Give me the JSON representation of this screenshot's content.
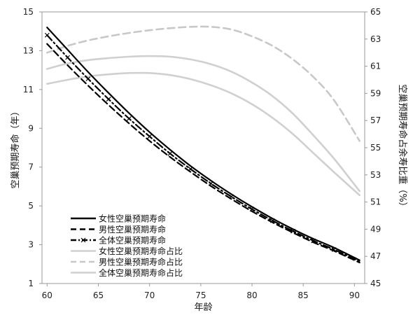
{
  "chart_data": {
    "type": "line",
    "xlabel": "年龄",
    "ylabel_left": "空巢预期寿命（年）",
    "ylabel_right": "空巢预期寿命占余寿比重（%）",
    "x_ticks": [
      60,
      65,
      70,
      75,
      80,
      85,
      90
    ],
    "x_range": [
      59.5,
      91
    ],
    "y_left_ticks": [
      1,
      3,
      5,
      7,
      9,
      11,
      13,
      15
    ],
    "y_left_range": [
      1,
      15
    ],
    "y_right_ticks": [
      45,
      47,
      49,
      51,
      53,
      55,
      57,
      59,
      61,
      63,
      65
    ],
    "y_right_range": [
      45,
      65
    ],
    "grid": false,
    "legend_placement": "bottom-left",
    "x": [
      60,
      62,
      64,
      66,
      68,
      70,
      72,
      74,
      76,
      78,
      80,
      82,
      84,
      86,
      88,
      90.5
    ],
    "series": [
      {
        "name": "女性空巢预期寿命",
        "axis": "left",
        "color": "#000000",
        "style": "solid",
        "values": [
          14.2,
          13.05,
          11.9,
          10.82,
          9.78,
          8.8,
          7.9,
          7.06,
          6.3,
          5.6,
          4.95,
          4.35,
          3.8,
          3.3,
          2.85,
          2.2
        ]
      },
      {
        "name": "男性空巢预期寿命",
        "axis": "left",
        "color": "#000000",
        "style": "dashed",
        "values": [
          13.35,
          12.25,
          11.2,
          10.2,
          9.25,
          8.35,
          7.52,
          6.75,
          6.02,
          5.35,
          4.72,
          4.15,
          3.62,
          3.12,
          2.68,
          2.08
        ]
      },
      {
        "name": "全体空巢预期寿命",
        "axis": "left",
        "color": "#000000",
        "style": "dashdot-x",
        "values": [
          13.8,
          12.65,
          11.55,
          10.5,
          9.5,
          8.58,
          7.7,
          6.9,
          6.15,
          5.47,
          4.83,
          4.24,
          3.7,
          3.2,
          2.75,
          2.14
        ]
      },
      {
        "name": "女性空巢预期寿命占比",
        "axis": "right",
        "color": "#d0d0d0",
        "style": "solid",
        "values": [
          59.7,
          60.0,
          60.25,
          60.4,
          60.5,
          60.5,
          60.35,
          60.05,
          59.6,
          59.0,
          58.2,
          57.2,
          56.0,
          54.6,
          53.2,
          51.5
        ]
      },
      {
        "name": "男性空巢预期寿命占比",
        "axis": "right",
        "color": "#c8c8c8",
        "style": "dashed",
        "values": [
          62.0,
          62.5,
          62.9,
          63.2,
          63.45,
          63.65,
          63.8,
          63.9,
          63.9,
          63.7,
          63.2,
          62.5,
          61.5,
          60.2,
          58.5,
          55.5
        ]
      },
      {
        "name": "全体空巢预期寿命占比",
        "axis": "right",
        "color": "#d0d0d0",
        "style": "solid",
        "values": [
          60.8,
          61.2,
          61.45,
          61.6,
          61.7,
          61.75,
          61.7,
          61.5,
          61.15,
          60.6,
          59.8,
          58.8,
          57.5,
          55.9,
          54.2,
          51.8
        ]
      }
    ]
  }
}
